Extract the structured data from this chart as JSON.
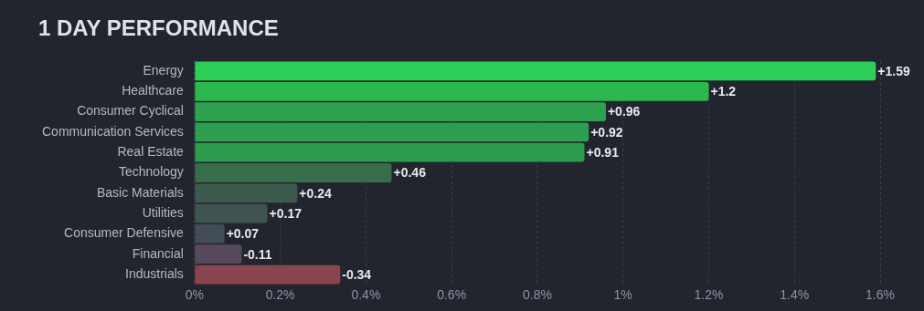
{
  "chart_data": {
    "type": "bar",
    "orientation": "horizontal",
    "title": "1 DAY PERFORMANCE",
    "categories": [
      "Energy",
      "Healthcare",
      "Consumer Cyclical",
      "Communication Services",
      "Real Estate",
      "Technology",
      "Basic Materials",
      "Utilities",
      "Consumer Defensive",
      "Financial",
      "Industrials"
    ],
    "values": [
      1.59,
      1.2,
      0.96,
      0.92,
      0.91,
      0.46,
      0.24,
      0.17,
      0.07,
      -0.11,
      -0.34
    ],
    "base": [
      0,
      0,
      0,
      0,
      0,
      0,
      0,
      0,
      0,
      0.11,
      0.34
    ],
    "value_labels": [
      "+1.59",
      "+1.2",
      "+0.96",
      "+0.92",
      "+0.91",
      "+0.46",
      "+0.24",
      "+0.17",
      "+0.07",
      "-0.11",
      "-0.34"
    ],
    "colors": [
      "#2ecf58",
      "#2bb84e",
      "#2ea24f",
      "#2e9f4e",
      "#2e9c4d",
      "#386d4c",
      "#3d5a4f",
      "#3f5450",
      "#434d55",
      "#584a5a",
      "#8a4450"
    ],
    "xlim": [
      0,
      1.6
    ],
    "xticks": [
      {
        "value": 0,
        "label": "0%"
      },
      {
        "value": 0.2,
        "label": "0.2%"
      },
      {
        "value": 0.4,
        "label": "0.4%"
      },
      {
        "value": 0.6,
        "label": "0.6%"
      },
      {
        "value": 0.8,
        "label": "0.8%"
      },
      {
        "value": 1,
        "label": "1%"
      },
      {
        "value": 1.2,
        "label": "1.2%"
      },
      {
        "value": 1.4,
        "label": "1.4%"
      },
      {
        "value": 1.6,
        "label": "1.6%"
      }
    ],
    "grid": "x",
    "legend": false
  }
}
